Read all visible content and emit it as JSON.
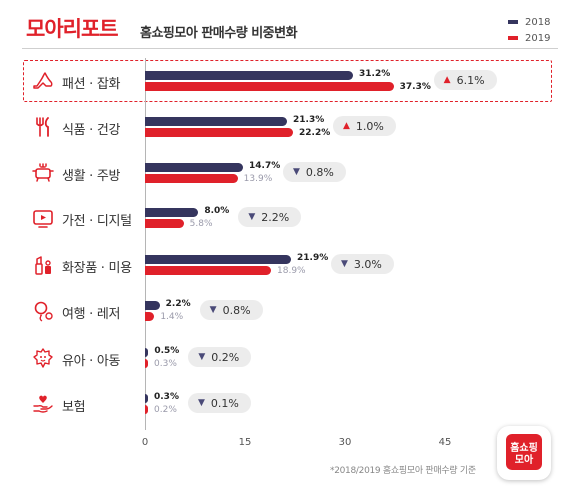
{
  "header": {
    "brand": "모아리포트",
    "subtitle": "홈쇼핑모아 판매수량 비중변화"
  },
  "legend": [
    {
      "label": "2018",
      "color": "#35355e"
    },
    {
      "label": "2019",
      "color": "#e0212a"
    }
  ],
  "chart_data": {
    "type": "bar",
    "orientation": "horizontal",
    "categories": [
      "패션 · 잡화",
      "식품 · 건강",
      "생활 · 주방",
      "가전 · 디지털",
      "화장품 · 미용",
      "여행 · 레저",
      "유아 · 아동",
      "보험"
    ],
    "series": [
      {
        "name": "2018",
        "values": [
          31.2,
          21.3,
          14.7,
          8.0,
          21.9,
          2.2,
          0.5,
          0.3
        ],
        "labels": [
          "31.2%",
          "21.3%",
          "14.7%",
          "8.0%",
          "21.9%",
          "2.2%",
          "0.5%",
          "0.3%"
        ],
        "color": "#35355e"
      },
      {
        "name": "2019",
        "values": [
          37.3,
          22.2,
          13.9,
          5.8,
          18.9,
          1.4,
          0.3,
          0.2
        ],
        "labels": [
          "37.3%",
          "22.2%",
          "13.9%",
          "5.8%",
          "18.9%",
          "1.4%",
          "0.3%",
          "0.2%"
        ],
        "color": "#e0212a"
      }
    ],
    "changes": [
      {
        "direction": "up",
        "text": "6.1%"
      },
      {
        "direction": "up",
        "text": "1.0%"
      },
      {
        "direction": "down",
        "text": "0.8%"
      },
      {
        "direction": "down",
        "text": "2.2%"
      },
      {
        "direction": "down",
        "text": "3.0%"
      },
      {
        "direction": "down",
        "text": "0.8%"
      },
      {
        "direction": "down",
        "text": "0.2%"
      },
      {
        "direction": "down",
        "text": "0.1%"
      }
    ],
    "xlim": [
      0,
      45
    ],
    "xticks": [
      "0",
      "15",
      "30",
      "45"
    ],
    "highlighted_category": "패션 · 잡화",
    "icons": [
      "high-heel-shoe-icon",
      "fork-knife-icon",
      "cooking-pot-icon",
      "tv-play-icon",
      "cosmetics-icon",
      "balloon-icon",
      "baby-face-icon",
      "hand-heart-icon"
    ],
    "grid": false,
    "legend_position": "top-right"
  },
  "footnote": "*2018/2019 홈쇼핑모아 판매수량 기준",
  "logo_text": [
    "홈쇼핑",
    "모아"
  ],
  "colors": {
    "accent": "#e0212a",
    "navy": "#35355e",
    "pill_bg": "#ececec",
    "up_arrow": "#e0212a",
    "down_arrow": "#4a4a78"
  }
}
